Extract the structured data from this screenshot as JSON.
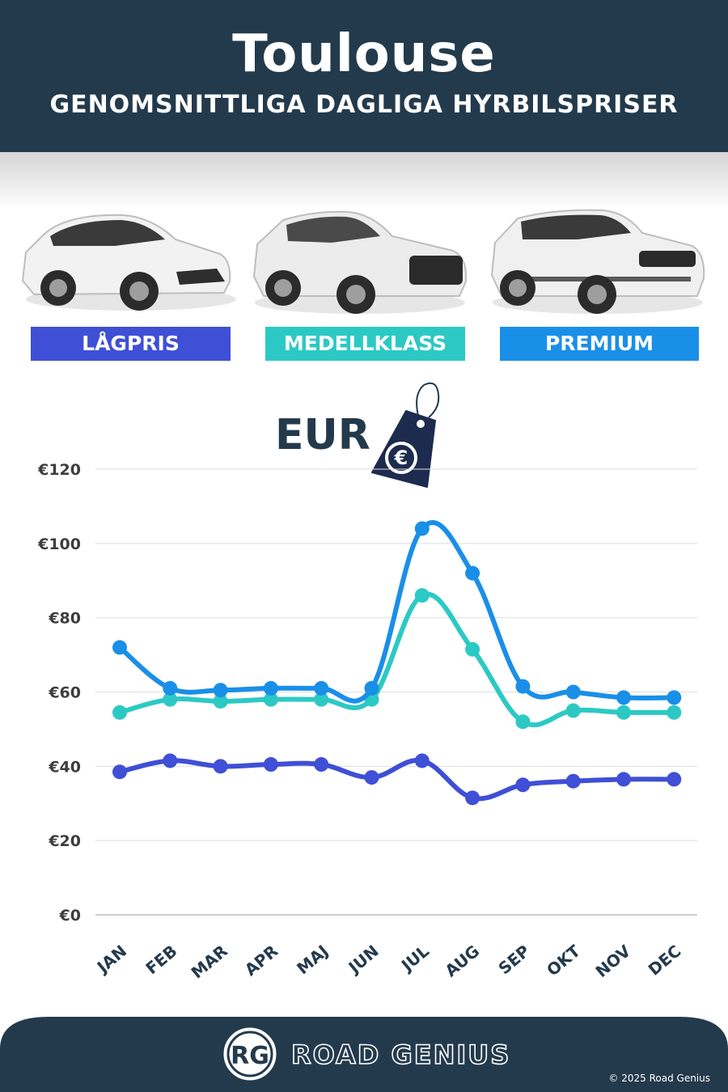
{
  "header": {
    "title": "Toulouse",
    "subtitle": "GENOMSNITTLIGA DAGLIGA HYRBILSPRISER"
  },
  "categories": [
    {
      "label": "LÅGPRIS",
      "color": "#3f4fd6"
    },
    {
      "label": "MEDELLKLASS",
      "color": "#2cc9c4"
    },
    {
      "label": "PREMIUM",
      "color": "#1a8fe8"
    }
  ],
  "currency_label": "EUR",
  "currency_icon": "euro-price-tag-icon",
  "chart_data": {
    "type": "line",
    "x": [
      "JAN",
      "FEB",
      "MAR",
      "APR",
      "MAJ",
      "JUN",
      "JUL",
      "AUG",
      "SEP",
      "OKT",
      "NOV",
      "DEC"
    ],
    "yticks": [
      "€0",
      "€20",
      "€40",
      "€60",
      "€80",
      "€100",
      "€120"
    ],
    "ylim": [
      0,
      120
    ],
    "grid": true,
    "series": [
      {
        "name": "LÅGPRIS",
        "color": "#3f4fd6",
        "values": [
          38.5,
          41.5,
          40,
          40.5,
          40.5,
          37,
          41.5,
          31.5,
          35,
          36,
          36.5,
          36.5
        ]
      },
      {
        "name": "MEDELLKLASS",
        "color": "#2cc9c4",
        "values": [
          54.5,
          58,
          57.5,
          58,
          58,
          58,
          86,
          71.5,
          52,
          55,
          54.5,
          54.5
        ]
      },
      {
        "name": "PREMIUM",
        "color": "#1a8fe8",
        "values": [
          72,
          61,
          60.5,
          61,
          61,
          61,
          104,
          92,
          61.5,
          60,
          58.5,
          58.5
        ]
      }
    ]
  },
  "footer": {
    "logo_initials": "RG",
    "brand": "ROAD GENIUS",
    "copyright": "© 2025 Road Genius"
  }
}
